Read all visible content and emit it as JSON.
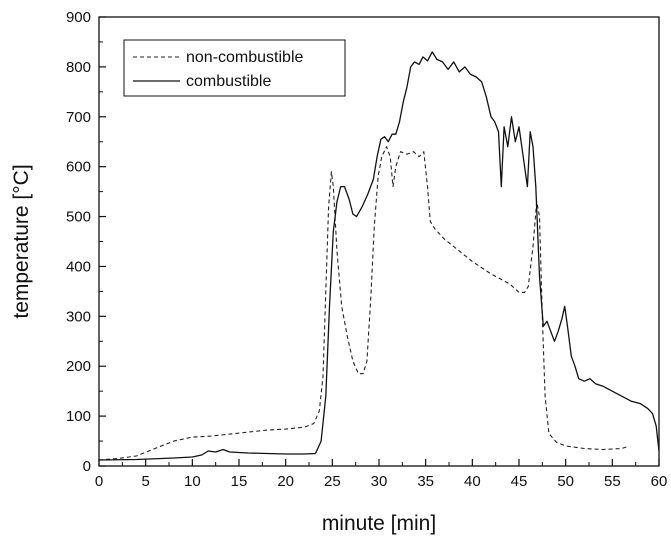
{
  "chart_data": {
    "type": "line",
    "xlabel": "minute [min]",
    "ylabel": "temperature [°C]",
    "xlim": [
      0,
      60
    ],
    "ylim": [
      0,
      900
    ],
    "xticks": [
      "0",
      "5",
      "10",
      "15",
      "20",
      "25",
      "30",
      "35",
      "40",
      "45",
      "50",
      "55",
      "60"
    ],
    "yticks": [
      "0",
      "100",
      "200",
      "300",
      "400",
      "500",
      "600",
      "700",
      "800",
      "900"
    ],
    "grid": false,
    "legend_position": "top-left",
    "series": [
      {
        "name": "non-combustible",
        "style": "dashed",
        "color": "#222222",
        "points": [
          [
            0,
            12
          ],
          [
            2,
            15
          ],
          [
            4,
            20
          ],
          [
            6,
            35
          ],
          [
            8,
            50
          ],
          [
            10,
            58
          ],
          [
            12,
            60
          ],
          [
            14,
            64
          ],
          [
            16,
            68
          ],
          [
            18,
            72
          ],
          [
            20,
            74
          ],
          [
            22,
            78
          ],
          [
            23,
            85
          ],
          [
            23.6,
            110
          ],
          [
            24,
            180
          ],
          [
            24.3,
            350
          ],
          [
            24.6,
            520
          ],
          [
            24.9,
            590
          ],
          [
            25.1,
            560
          ],
          [
            25.5,
            430
          ],
          [
            26,
            320
          ],
          [
            26.6,
            260
          ],
          [
            27.2,
            210
          ],
          [
            27.8,
            185
          ],
          [
            28.3,
            185
          ],
          [
            28.7,
            210
          ],
          [
            29.1,
            330
          ],
          [
            29.5,
            480
          ],
          [
            29.9,
            580
          ],
          [
            30.3,
            620
          ],
          [
            30.8,
            640
          ],
          [
            31.2,
            620
          ],
          [
            31.5,
            560
          ],
          [
            31.8,
            600
          ],
          [
            32.3,
            630
          ],
          [
            33,
            625
          ],
          [
            33.7,
            630
          ],
          [
            34.3,
            620
          ],
          [
            34.8,
            630
          ],
          [
            35.2,
            560
          ],
          [
            35.5,
            490
          ],
          [
            36,
            475
          ],
          [
            37,
            455
          ],
          [
            38,
            440
          ],
          [
            40,
            410
          ],
          [
            42,
            385
          ],
          [
            44,
            365
          ],
          [
            45,
            348
          ],
          [
            45.6,
            348
          ],
          [
            46,
            360
          ],
          [
            46.5,
            440
          ],
          [
            46.9,
            530
          ],
          [
            47.2,
            500
          ],
          [
            47.5,
            300
          ],
          [
            47.8,
            140
          ],
          [
            48.2,
            65
          ],
          [
            49,
            48
          ],
          [
            50,
            40
          ],
          [
            52,
            35
          ],
          [
            54,
            33
          ],
          [
            56,
            35
          ],
          [
            56.5,
            38
          ]
        ]
      },
      {
        "name": "combustible",
        "style": "solid",
        "color": "#111111",
        "points": [
          [
            0,
            12
          ],
          [
            4,
            13
          ],
          [
            8,
            16
          ],
          [
            10,
            18
          ],
          [
            11,
            22
          ],
          [
            11.7,
            30
          ],
          [
            12.5,
            28
          ],
          [
            13.3,
            33
          ],
          [
            14,
            28
          ],
          [
            16,
            26
          ],
          [
            18,
            25
          ],
          [
            20,
            24
          ],
          [
            22,
            24
          ],
          [
            23.2,
            25
          ],
          [
            23.8,
            50
          ],
          [
            24.3,
            140
          ],
          [
            24.7,
            320
          ],
          [
            25.1,
            470
          ],
          [
            25.5,
            530
          ],
          [
            25.9,
            560
          ],
          [
            26.3,
            560
          ],
          [
            26.8,
            535
          ],
          [
            27.2,
            505
          ],
          [
            27.6,
            500
          ],
          [
            28.2,
            520
          ],
          [
            28.8,
            545
          ],
          [
            29.4,
            575
          ],
          [
            29.8,
            620
          ],
          [
            30.2,
            655
          ],
          [
            30.6,
            660
          ],
          [
            31,
            650
          ],
          [
            31.4,
            665
          ],
          [
            31.8,
            665
          ],
          [
            32.2,
            690
          ],
          [
            32.6,
            730
          ],
          [
            33,
            760
          ],
          [
            33.4,
            800
          ],
          [
            33.8,
            810
          ],
          [
            34.3,
            805
          ],
          [
            34.7,
            820
          ],
          [
            35.2,
            812
          ],
          [
            35.7,
            830
          ],
          [
            36.2,
            815
          ],
          [
            36.8,
            810
          ],
          [
            37.4,
            795
          ],
          [
            38,
            810
          ],
          [
            38.6,
            790
          ],
          [
            39.2,
            800
          ],
          [
            39.8,
            785
          ],
          [
            40.4,
            780
          ],
          [
            41,
            770
          ],
          [
            41.5,
            740
          ],
          [
            42,
            700
          ],
          [
            42.4,
            690
          ],
          [
            42.8,
            670
          ],
          [
            43.1,
            560
          ],
          [
            43.4,
            680
          ],
          [
            43.8,
            640
          ],
          [
            44.2,
            700
          ],
          [
            44.6,
            650
          ],
          [
            45,
            680
          ],
          [
            45.3,
            640
          ],
          [
            45.6,
            600
          ],
          [
            45.9,
            560
          ],
          [
            46.2,
            670
          ],
          [
            46.5,
            640
          ],
          [
            46.8,
            560
          ],
          [
            47.2,
            380
          ],
          [
            47.6,
            280
          ],
          [
            48,
            290
          ],
          [
            48.4,
            270
          ],
          [
            48.8,
            250
          ],
          [
            49.2,
            270
          ],
          [
            49.6,
            295
          ],
          [
            49.9,
            320
          ],
          [
            50.2,
            280
          ],
          [
            50.6,
            220
          ],
          [
            51,
            200
          ],
          [
            51.4,
            175
          ],
          [
            52,
            170
          ],
          [
            52.6,
            175
          ],
          [
            53.2,
            165
          ],
          [
            54,
            160
          ],
          [
            55,
            150
          ],
          [
            56,
            140
          ],
          [
            57,
            130
          ],
          [
            58,
            125
          ],
          [
            58.8,
            115
          ],
          [
            59.3,
            105
          ],
          [
            59.7,
            80
          ],
          [
            60,
            30
          ]
        ]
      }
    ]
  }
}
